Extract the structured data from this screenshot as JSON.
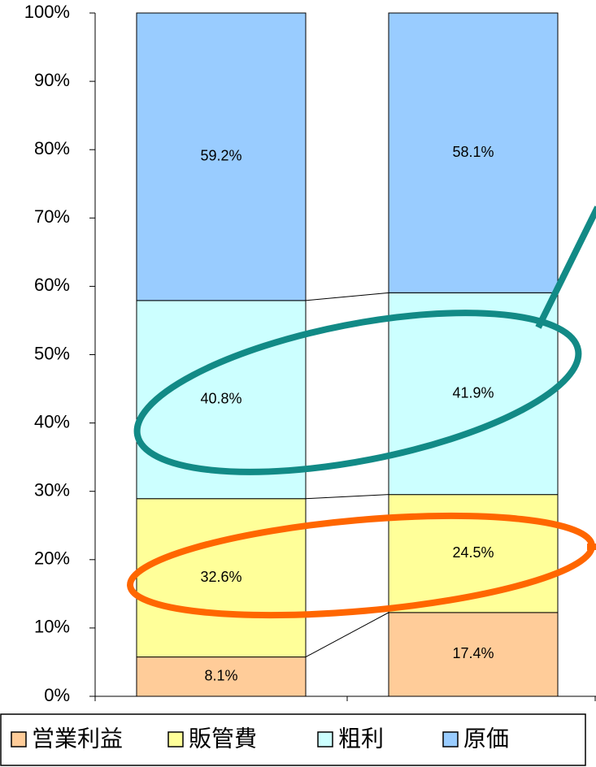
{
  "chart_data": {
    "type": "stacked_percent_bar",
    "categories": [
      null,
      null
    ],
    "series": [
      {
        "name": "営業利益",
        "color": "#ffcc99",
        "values": [
          8.1,
          17.4
        ],
        "value_labels": [
          "8.1%",
          "17.4%"
        ]
      },
      {
        "name": "販管費",
        "color": "#ffff99",
        "values": [
          32.6,
          24.5
        ],
        "value_labels": [
          "32.6%",
          "24.5%"
        ]
      },
      {
        "name": "粗利",
        "color": "#ccffff",
        "values": [
          40.8,
          41.9
        ],
        "value_labels": [
          "40.8%",
          "41.9%"
        ]
      },
      {
        "name": "原価",
        "color": "#99ccff",
        "values": [
          59.2,
          58.1
        ],
        "value_labels": [
          "59.2%",
          "58.1%"
        ]
      }
    ],
    "ylim": [
      0,
      100
    ],
    "yticks": [
      {
        "value": 0,
        "label": "0%"
      },
      {
        "value": 10,
        "label": "10%"
      },
      {
        "value": 20,
        "label": "20%"
      },
      {
        "value": 30,
        "label": "30%"
      },
      {
        "value": 40,
        "label": "40%"
      },
      {
        "value": 50,
        "label": "50%"
      },
      {
        "value": 60,
        "label": "60%"
      },
      {
        "value": 70,
        "label": "70%"
      },
      {
        "value": 80,
        "label": "80%"
      },
      {
        "value": 90,
        "label": "90%"
      },
      {
        "value": 100,
        "label": "100%"
      }
    ],
    "legend": "bottom"
  }
}
